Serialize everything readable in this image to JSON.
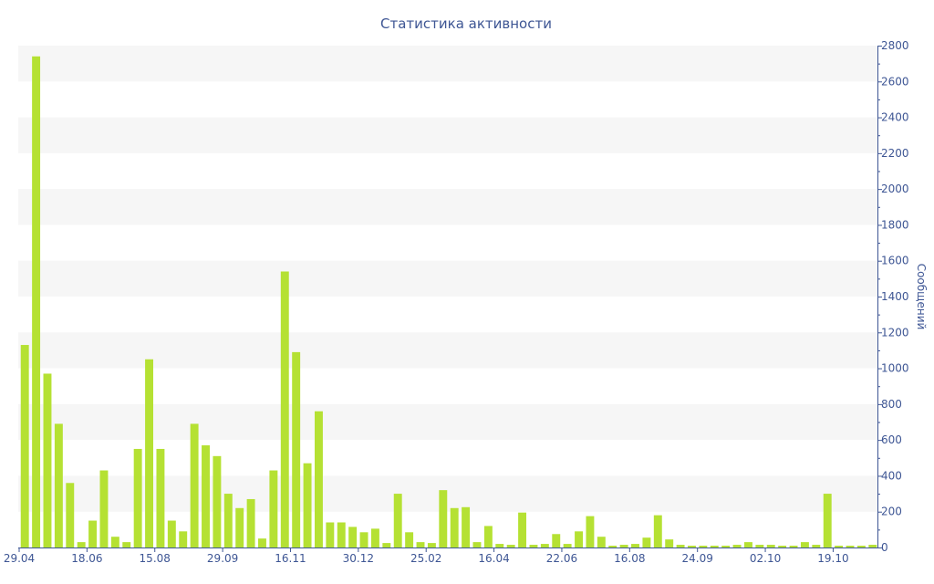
{
  "chart_data": {
    "type": "bar",
    "title": "Статистика активности",
    "ylabel": "Сообщений",
    "ylim": [
      0,
      2800
    ],
    "y_ticks": [
      0,
      200,
      400,
      600,
      800,
      1000,
      1200,
      1400,
      1600,
      1800,
      2000,
      2200,
      2400,
      2600,
      2800
    ],
    "y_axis_side": "right",
    "grid": "alternating horizontal bands",
    "x_tick_labels": [
      "29.04",
      "18.06",
      "15.08",
      "29.09",
      "16.11",
      "30.12",
      "25.02",
      "16.04",
      "22.06",
      "16.08",
      "24.09",
      "02.10",
      "19.10"
    ],
    "x_tick_positions": [
      0,
      6,
      12,
      18,
      24,
      30,
      36,
      42,
      48,
      54,
      60,
      66,
      72
    ],
    "values": [
      1130,
      2740,
      970,
      690,
      360,
      30,
      150,
      430,
      60,
      30,
      550,
      1050,
      550,
      150,
      90,
      690,
      570,
      510,
      300,
      220,
      270,
      50,
      430,
      1540,
      1090,
      470,
      760,
      140,
      140,
      115,
      85,
      105,
      25,
      300,
      85,
      30,
      25,
      320,
      220,
      225,
      30,
      120,
      20,
      15,
      195,
      15,
      20,
      75,
      20,
      90,
      175,
      60,
      10,
      15,
      20,
      55,
      180,
      45,
      15,
      10,
      10,
      10,
      10,
      15,
      30,
      15,
      15,
      10,
      10,
      30,
      15,
      300,
      10,
      10,
      10,
      15
    ],
    "colors": {
      "bar": "#b5e133",
      "axis": "#3e5694",
      "band": "#f6f6f6"
    }
  }
}
